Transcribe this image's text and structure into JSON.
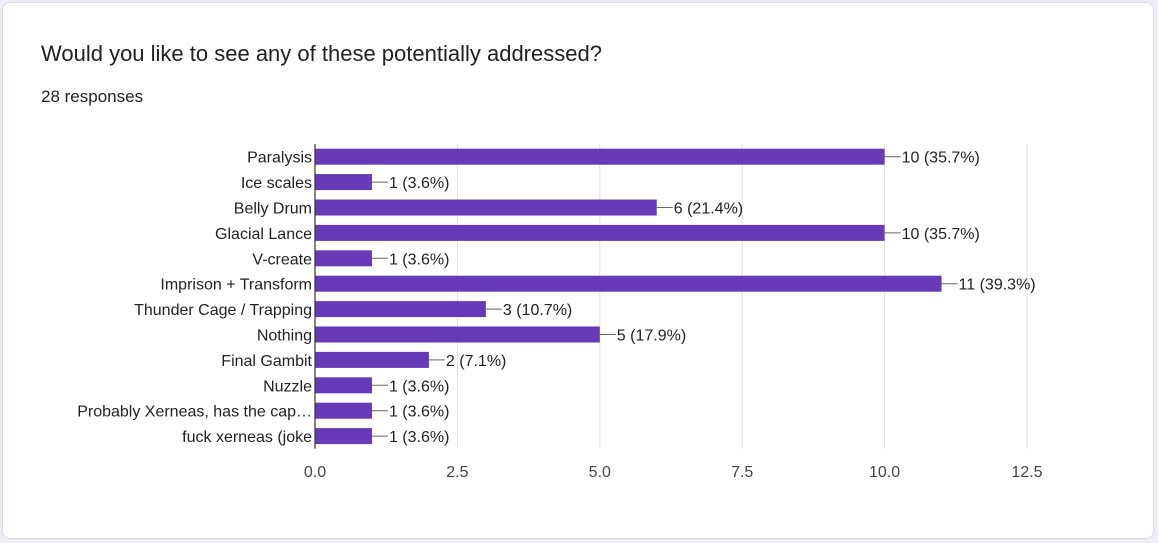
{
  "card": {
    "question": "Would you like to see any of these potentially addressed?",
    "responses": "28 responses"
  },
  "colors": {
    "bar": "#673ab7",
    "grid": "#e0e0e0",
    "axis": "#333333"
  },
  "chart_data": {
    "type": "bar",
    "orientation": "horizontal",
    "title": "Would you like to see any of these potentially addressed?",
    "categories": [
      "Paralysis",
      "Ice scales",
      "Belly Drum",
      "Glacial Lance",
      "V-create",
      "Imprison + Transform",
      "Thunder Cage / Trapping",
      "Nothing",
      "Final Gambit",
      "Nuzzle",
      "Probably Xerneas, has the cap…",
      "fuck xerneas (joke"
    ],
    "values": [
      10,
      1,
      6,
      10,
      1,
      11,
      3,
      5,
      2,
      1,
      1,
      1
    ],
    "data_labels": [
      "10 (35.7%)",
      "1 (3.6%)",
      "6 (21.4%)",
      "10 (35.7%)",
      "1 (3.6%)",
      "11 (39.3%)",
      "3 (10.7%)",
      "5 (17.9%)",
      "2 (7.1%)",
      "1 (3.6%)",
      "1 (3.6%)",
      "1 (3.6%)"
    ],
    "x_ticks": [
      "0.0",
      "2.5",
      "5.0",
      "7.5",
      "10.0",
      "12.5"
    ],
    "xlim": [
      0,
      12.5
    ],
    "grid": true
  }
}
